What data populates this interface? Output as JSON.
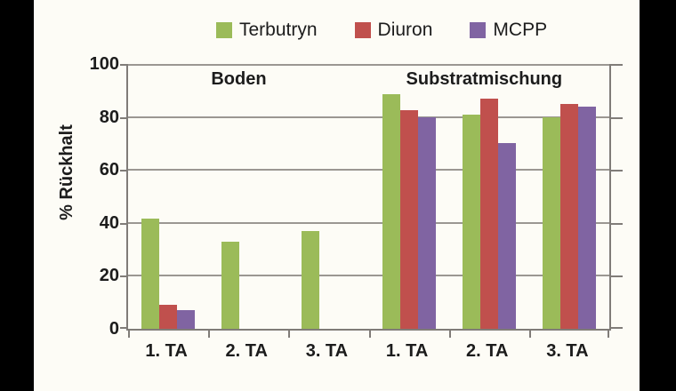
{
  "chart_data": {
    "type": "bar",
    "title": "",
    "ylabel": "% Rückhalt",
    "xlabel": "",
    "ylim": [
      0,
      100
    ],
    "yticks": [
      0,
      20,
      40,
      60,
      80,
      100
    ],
    "grid": true,
    "legend_position": "top",
    "categories": [
      "1. TA",
      "2. TA",
      "3. TA",
      "1. TA",
      "2. TA",
      "3. TA"
    ],
    "group_labels": [
      {
        "text": "Boden",
        "x_frac": 0.23
      },
      {
        "text": "Substratmischung",
        "x_frac": 0.74
      }
    ],
    "series": [
      {
        "name": "Terbutryn",
        "color": "#9BBB59",
        "values": [
          41.5,
          33,
          37,
          88.5,
          81,
          80
        ]
      },
      {
        "name": "Diuron",
        "color": "#C0504D",
        "values": [
          9,
          0,
          0,
          82.5,
          87,
          85
        ]
      },
      {
        "name": "MCPP",
        "color": "#8064A2",
        "values": [
          7,
          0,
          0,
          80,
          70,
          84
        ]
      }
    ]
  },
  "colors": {
    "background": "#FDFCF6",
    "letterbox": "#000000",
    "gridline": "#9B9792",
    "axis": "#807C78",
    "text": "#1C1C1C"
  }
}
